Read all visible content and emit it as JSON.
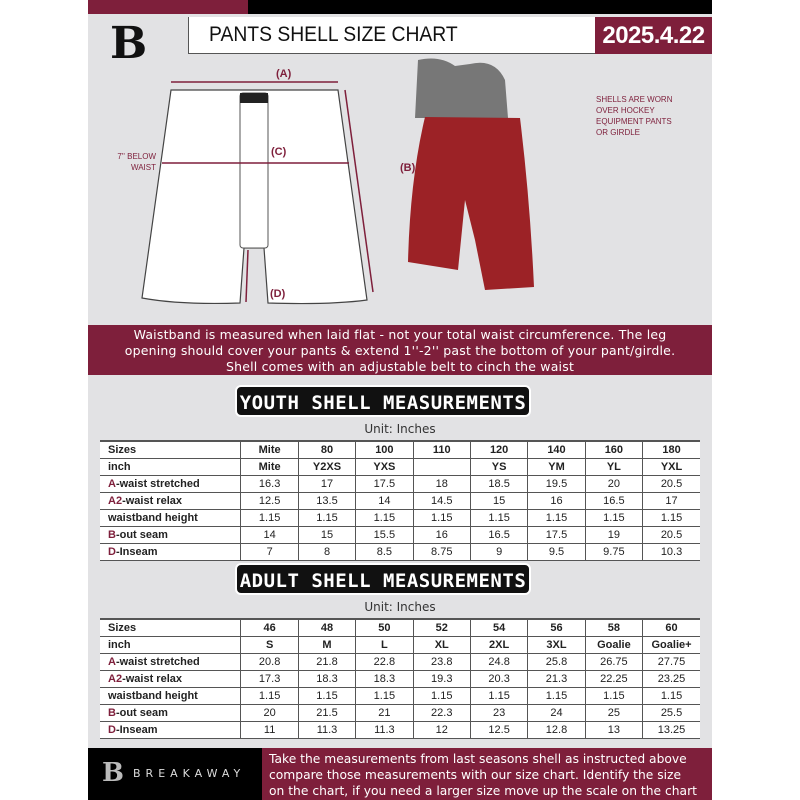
{
  "header": {
    "logo_letter": "B",
    "title": "PANTS SHELL SIZE CHART",
    "date": "2025.4.22"
  },
  "diagram": {
    "label_a": "(A)",
    "label_b": "(B)",
    "label_c": "(C)",
    "label_d": "(D)",
    "below_waist_line1": "7'' BELOW",
    "below_waist_line2": "WAIST",
    "note": [
      "SHELLS ARE WORN",
      "OVER HOCKEY",
      "EQUIPMENT PANTS",
      "OR GIRDLE"
    ]
  },
  "info_band": [
    "Waistband is measured when laid flat - not your total waist circumference. The leg",
    "opening should cover your pants & extend 1''-2'' past the bottom of your pant/girdle.",
    "Shell comes with an adjustable belt to cinch the waist"
  ],
  "youth": {
    "heading": "YOUTH SHELL MEASUREMENTS",
    "unit": "Unit: Inches",
    "rows": [
      {
        "pre": "",
        "label": "Sizes",
        "values": [
          "Mite",
          "80",
          "100",
          "110",
          "120",
          "140",
          "160",
          "180"
        ]
      },
      {
        "pre": "",
        "label": "inch",
        "values": [
          "Mite",
          "Y2XS",
          "YXS",
          "",
          "YS",
          "YM",
          "YL",
          "YXL"
        ]
      },
      {
        "pre": "A",
        "label": "-waist stretched",
        "values": [
          "16.3",
          "17",
          "17.5",
          "18",
          "18.5",
          "19.5",
          "20",
          "20.5"
        ]
      },
      {
        "pre": "A2",
        "label": "-waist relax",
        "values": [
          "12.5",
          "13.5",
          "14",
          "14.5",
          "15",
          "16",
          "16.5",
          "17"
        ]
      },
      {
        "pre": "",
        "label": "waistband height",
        "values": [
          "1.15",
          "1.15",
          "1.15",
          "1.15",
          "1.15",
          "1.15",
          "1.15",
          "1.15"
        ]
      },
      {
        "pre": "B",
        "label": "-out seam",
        "values": [
          "14",
          "15",
          "15.5",
          "16",
          "16.5",
          "17.5",
          "19",
          "20.5"
        ]
      },
      {
        "pre": "D",
        "label": "-Inseam",
        "values": [
          "7",
          "8",
          "8.5",
          "8.75",
          "9",
          "9.5",
          "9.75",
          "10.3"
        ]
      }
    ]
  },
  "adult": {
    "heading": "ADULT SHELL MEASUREMENTS",
    "unit": "Unit: Inches",
    "rows": [
      {
        "pre": "",
        "label": "Sizes",
        "values": [
          "46",
          "48",
          "50",
          "52",
          "54",
          "56",
          "58",
          "60"
        ]
      },
      {
        "pre": "",
        "label": "inch",
        "values": [
          "S",
          "M",
          "L",
          "XL",
          "2XL",
          "3XL",
          "Goalie",
          "Goalie+"
        ]
      },
      {
        "pre": "A",
        "label": "-waist stretched",
        "values": [
          "20.8",
          "21.8",
          "22.8",
          "23.8",
          "24.8",
          "25.8",
          "26.75",
          "27.75"
        ]
      },
      {
        "pre": "A2",
        "label": "-waist relax",
        "values": [
          "17.3",
          "18.3",
          "18.3",
          "19.3",
          "20.3",
          "21.3",
          "22.25",
          "23.25"
        ]
      },
      {
        "pre": "",
        "label": "waistband height",
        "values": [
          "1.15",
          "1.15",
          "1.15",
          "1.15",
          "1.15",
          "1.15",
          "1.15",
          "1.15"
        ]
      },
      {
        "pre": "B",
        "label": "-out seam",
        "values": [
          "20",
          "21.5",
          "21",
          "22.3",
          "23",
          "24",
          "25",
          "25.5"
        ]
      },
      {
        "pre": "D",
        "label": "-Inseam",
        "values": [
          "11",
          "11.3",
          "11.3",
          "12",
          "12.5",
          "12.8",
          "13",
          "13.25"
        ]
      }
    ]
  },
  "footer": {
    "brand": "BREAKAWAY",
    "logo_letter": "B",
    "text": [
      "Take the measurements from last seasons shell as instructed above",
      "compare those measurements  with our size chart. Identify the size",
      "on the chart, if you need a larger size move up the scale on the chart"
    ]
  },
  "colors": {
    "accent": "#7e1f3b",
    "dark": "#000000",
    "background": "#e2e2e4"
  }
}
